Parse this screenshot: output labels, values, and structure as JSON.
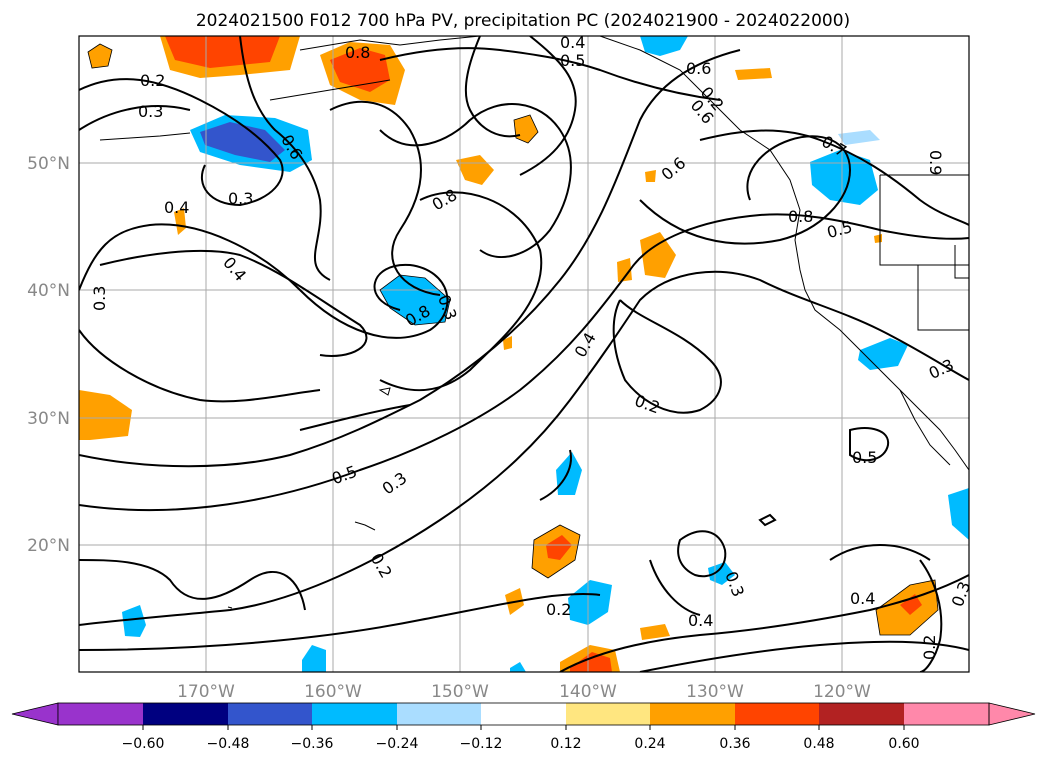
{
  "title": "2024021500 F012 700 hPa PV, precipitation PC (2024021900 - 2024022000)",
  "axes": {
    "lon_labels": [
      "170°W",
      "160°W",
      "150°W",
      "140°W",
      "130°W",
      "120°W"
    ],
    "lat_labels": [
      "50°N",
      "40°N",
      "30°N",
      "20°N"
    ]
  },
  "colorbar": {
    "ticks": [
      "−0.60",
      "−0.48",
      "−0.36",
      "−0.24",
      "−0.12",
      "0.12",
      "0.24",
      "0.36",
      "0.48",
      "0.60"
    ],
    "colors": [
      "#9933cc",
      "#000080",
      "#3355cc",
      "#00bbff",
      "#aaddff",
      "#ffffff",
      "#ffe680",
      "#ffa000",
      "#ff4400",
      "#b22222",
      "#ff88aa"
    ]
  },
  "contour_labels": [
    "0.2",
    "0.3",
    "0.6",
    "0.8",
    "0.3",
    "0.4",
    "0.4",
    "0.3",
    "0.8",
    "0.8",
    "0.4",
    "0.5",
    "0.4",
    "0.6",
    "0.6",
    "0.5",
    "0.6",
    "0.7",
    "0.8",
    "0.5",
    "0.9",
    "0.4",
    "0.2",
    "0.3",
    "0.5",
    "0.3",
    "0.2",
    "0.2",
    "0.3",
    "0.4",
    "0.3",
    "0.2",
    "0.3",
    "0.2"
  ],
  "colors": {
    "contour": "#000000",
    "grid": "#aaaaaa",
    "axis_text": "#888888"
  }
}
